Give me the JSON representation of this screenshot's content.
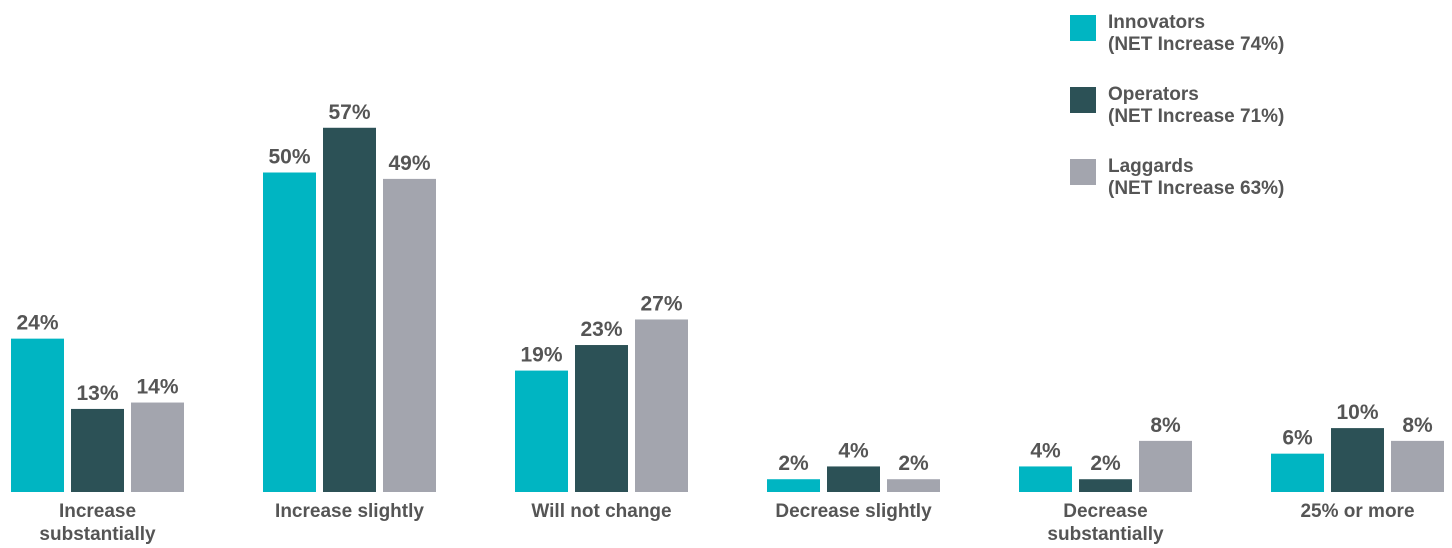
{
  "chart_data": {
    "type": "bar",
    "title": "",
    "xlabel": "",
    "ylabel": "",
    "ylim": [
      0,
      60
    ],
    "grid": false,
    "legend_position": "top-right",
    "categories": [
      "Increase substantially",
      "Increase slightly",
      "Will not change",
      "Decrease slightly",
      "Decrease substantially",
      "25% or more"
    ],
    "category_label_lines": [
      [
        "Increase",
        "substantially"
      ],
      [
        "Increase slightly"
      ],
      [
        "Will not change"
      ],
      [
        "Decrease slightly"
      ],
      [
        "Decrease",
        "substantially"
      ],
      [
        "25% or more"
      ]
    ],
    "series": [
      {
        "name": "Innovators",
        "legend_lines": [
          "Innovators",
          "(NET Increase 74%)"
        ],
        "color": "#00b5c2",
        "values": [
          24,
          50,
          19,
          2,
          4,
          6
        ],
        "labels": [
          "24%",
          "50%",
          "19%",
          "2%",
          "4%",
          "6%"
        ]
      },
      {
        "name": "Operators",
        "legend_lines": [
          "Operators",
          "(NET Increase 71%)"
        ],
        "color": "#2c5156",
        "values": [
          13,
          57,
          23,
          4,
          2,
          10
        ],
        "labels": [
          "13%",
          "57%",
          "23%",
          "4%",
          "2%",
          "10%"
        ]
      },
      {
        "name": "Laggards",
        "legend_lines": [
          "Laggards",
          "(NET Increase 63%)"
        ],
        "color": "#a3a5ae",
        "values": [
          14,
          49,
          27,
          2,
          8,
          8
        ],
        "labels": [
          "14%",
          "49%",
          "27%",
          "2%",
          "8%",
          "8%"
        ]
      }
    ]
  }
}
